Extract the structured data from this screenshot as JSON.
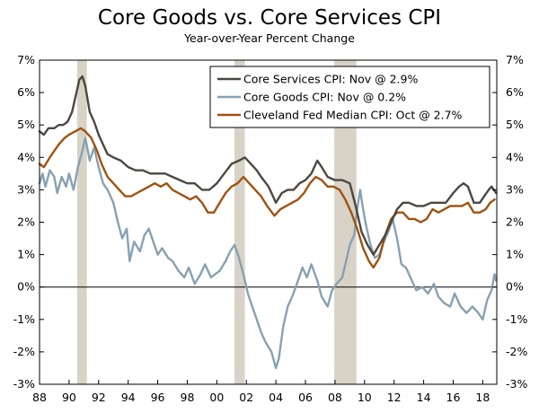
{
  "chart_data": {
    "type": "line",
    "title": "Core Goods vs. Core Services CPI",
    "subtitle": "Year-over-Year Percent Change",
    "xlabel": "",
    "ylabel": "",
    "x_range": [
      1988.0,
      2018.95
    ],
    "ylim": [
      -3,
      7
    ],
    "x_tick_values": [
      1988,
      1990,
      1992,
      1994,
      1996,
      1998,
      2000,
      2002,
      2004,
      2006,
      2008,
      2010,
      2012,
      2014,
      2016,
      2018
    ],
    "x_tick_labels": [
      "88",
      "90",
      "92",
      "94",
      "96",
      "98",
      "00",
      "02",
      "04",
      "06",
      "08",
      "10",
      "12",
      "14",
      "16",
      "18"
    ],
    "y_tick_values": [
      -3,
      -2,
      -1,
      0,
      1,
      2,
      3,
      4,
      5,
      6,
      7
    ],
    "y_tick_labels": [
      "-3%",
      "-2%",
      "-1%",
      "0%",
      "1%",
      "2%",
      "3%",
      "4%",
      "5%",
      "6%",
      "7%"
    ],
    "recessions": [
      [
        1990.55,
        1991.2
      ],
      [
        2001.2,
        2001.9
      ],
      [
        2007.95,
        2009.45
      ]
    ],
    "legend_position": "top-right",
    "series": [
      {
        "name": "Core Services CPI: Nov @ 2.9%",
        "color": "#4d4741",
        "points": [
          [
            1988.0,
            4.8
          ],
          [
            1988.3,
            4.7
          ],
          [
            1988.6,
            4.9
          ],
          [
            1989.0,
            4.9
          ],
          [
            1989.3,
            5.0
          ],
          [
            1989.6,
            5.0
          ],
          [
            1989.9,
            5.1
          ],
          [
            1990.2,
            5.4
          ],
          [
            1990.5,
            6.0
          ],
          [
            1990.7,
            6.4
          ],
          [
            1990.9,
            6.5
          ],
          [
            1991.1,
            6.2
          ],
          [
            1991.4,
            5.4
          ],
          [
            1991.7,
            5.1
          ],
          [
            1992.0,
            4.7
          ],
          [
            1992.3,
            4.4
          ],
          [
            1992.6,
            4.1
          ],
          [
            1993.0,
            4.0
          ],
          [
            1993.5,
            3.9
          ],
          [
            1994.0,
            3.7
          ],
          [
            1994.5,
            3.6
          ],
          [
            1995.0,
            3.6
          ],
          [
            1995.5,
            3.5
          ],
          [
            1996.0,
            3.5
          ],
          [
            1996.5,
            3.5
          ],
          [
            1997.0,
            3.4
          ],
          [
            1997.5,
            3.3
          ],
          [
            1998.0,
            3.2
          ],
          [
            1998.5,
            3.2
          ],
          [
            1999.0,
            3.0
          ],
          [
            1999.5,
            3.0
          ],
          [
            2000.0,
            3.2
          ],
          [
            2000.5,
            3.5
          ],
          [
            2001.0,
            3.8
          ],
          [
            2001.5,
            3.9
          ],
          [
            2001.9,
            4.0
          ],
          [
            2002.3,
            3.8
          ],
          [
            2002.7,
            3.6
          ],
          [
            2003.0,
            3.4
          ],
          [
            2003.5,
            3.1
          ],
          [
            2004.0,
            2.6
          ],
          [
            2004.4,
            2.9
          ],
          [
            2004.8,
            3.0
          ],
          [
            2005.2,
            3.0
          ],
          [
            2005.6,
            3.2
          ],
          [
            2006.0,
            3.3
          ],
          [
            2006.4,
            3.5
          ],
          [
            2006.8,
            3.9
          ],
          [
            2007.1,
            3.7
          ],
          [
            2007.5,
            3.4
          ],
          [
            2008.0,
            3.3
          ],
          [
            2008.5,
            3.3
          ],
          [
            2009.0,
            3.2
          ],
          [
            2009.4,
            2.5
          ],
          [
            2009.8,
            1.7
          ],
          [
            2010.2,
            1.3
          ],
          [
            2010.6,
            1.0
          ],
          [
            2011.0,
            1.3
          ],
          [
            2011.4,
            1.6
          ],
          [
            2011.8,
            2.0
          ],
          [
            2012.2,
            2.4
          ],
          [
            2012.6,
            2.6
          ],
          [
            2013.0,
            2.6
          ],
          [
            2013.5,
            2.5
          ],
          [
            2014.0,
            2.5
          ],
          [
            2014.5,
            2.6
          ],
          [
            2015.0,
            2.6
          ],
          [
            2015.5,
            2.6
          ],
          [
            2016.0,
            2.9
          ],
          [
            2016.4,
            3.1
          ],
          [
            2016.7,
            3.2
          ],
          [
            2017.0,
            3.1
          ],
          [
            2017.4,
            2.6
          ],
          [
            2017.8,
            2.6
          ],
          [
            2018.1,
            2.8
          ],
          [
            2018.4,
            3.0
          ],
          [
            2018.6,
            3.1
          ],
          [
            2018.9,
            2.9
          ]
        ]
      },
      {
        "name": "Core Goods CPI: Nov @ 0.2%",
        "color": "#87a1b2",
        "points": [
          [
            1988.0,
            3.2
          ],
          [
            1988.2,
            3.5
          ],
          [
            1988.4,
            3.1
          ],
          [
            1988.7,
            3.6
          ],
          [
            1989.0,
            3.4
          ],
          [
            1989.2,
            2.9
          ],
          [
            1989.5,
            3.4
          ],
          [
            1989.8,
            3.1
          ],
          [
            1990.0,
            3.5
          ],
          [
            1990.3,
            3.0
          ],
          [
            1990.6,
            3.7
          ],
          [
            1990.9,
            4.2
          ],
          [
            1991.1,
            4.6
          ],
          [
            1991.4,
            3.9
          ],
          [
            1991.7,
            4.3
          ],
          [
            1992.0,
            3.7
          ],
          [
            1992.3,
            3.2
          ],
          [
            1992.6,
            3.0
          ],
          [
            1993.0,
            2.6
          ],
          [
            1993.3,
            2.0
          ],
          [
            1993.6,
            1.5
          ],
          [
            1993.9,
            1.8
          ],
          [
            1994.1,
            0.8
          ],
          [
            1994.4,
            1.4
          ],
          [
            1994.8,
            1.1
          ],
          [
            1995.1,
            1.6
          ],
          [
            1995.4,
            1.8
          ],
          [
            1995.7,
            1.4
          ],
          [
            1996.0,
            1.0
          ],
          [
            1996.3,
            1.2
          ],
          [
            1996.7,
            0.9
          ],
          [
            1997.0,
            0.8
          ],
          [
            1997.4,
            0.5
          ],
          [
            1997.8,
            0.3
          ],
          [
            1998.1,
            0.6
          ],
          [
            1998.5,
            0.1
          ],
          [
            1998.9,
            0.4
          ],
          [
            1999.2,
            0.7
          ],
          [
            1999.6,
            0.3
          ],
          [
            1999.9,
            0.4
          ],
          [
            2000.2,
            0.5
          ],
          [
            2000.6,
            0.8
          ],
          [
            2000.9,
            1.1
          ],
          [
            2001.2,
            1.3
          ],
          [
            2001.5,
            0.9
          ],
          [
            2001.8,
            0.4
          ],
          [
            2002.1,
            -0.2
          ],
          [
            2002.4,
            -0.6
          ],
          [
            2002.7,
            -1.0
          ],
          [
            2003.0,
            -1.4
          ],
          [
            2003.3,
            -1.7
          ],
          [
            2003.7,
            -2.0
          ],
          [
            2004.0,
            -2.5
          ],
          [
            2004.2,
            -2.2
          ],
          [
            2004.5,
            -1.2
          ],
          [
            2004.8,
            -0.6
          ],
          [
            2005.1,
            -0.3
          ],
          [
            2005.5,
            0.2
          ],
          [
            2005.8,
            0.6
          ],
          [
            2006.1,
            0.3
          ],
          [
            2006.4,
            0.7
          ],
          [
            2006.8,
            0.2
          ],
          [
            2007.1,
            -0.3
          ],
          [
            2007.5,
            -0.6
          ],
          [
            2007.8,
            -0.1
          ],
          [
            2008.1,
            0.1
          ],
          [
            2008.5,
            0.3
          ],
          [
            2008.8,
            0.9
          ],
          [
            2009.0,
            1.3
          ],
          [
            2009.3,
            1.6
          ],
          [
            2009.5,
            2.4
          ],
          [
            2009.7,
            3.0
          ],
          [
            2009.9,
            2.4
          ],
          [
            2010.1,
            1.9
          ],
          [
            2010.4,
            1.3
          ],
          [
            2010.7,
            0.9
          ],
          [
            2011.0,
            1.0
          ],
          [
            2011.3,
            1.4
          ],
          [
            2011.6,
            1.7
          ],
          [
            2011.9,
            2.1
          ],
          [
            2012.2,
            1.5
          ],
          [
            2012.5,
            0.7
          ],
          [
            2012.8,
            0.6
          ],
          [
            2013.1,
            0.3
          ],
          [
            2013.5,
            -0.1
          ],
          [
            2013.9,
            0.0
          ],
          [
            2014.3,
            -0.2
          ],
          [
            2014.7,
            0.1
          ],
          [
            2015.0,
            -0.3
          ],
          [
            2015.4,
            -0.5
          ],
          [
            2015.8,
            -0.6
          ],
          [
            2016.1,
            -0.2
          ],
          [
            2016.5,
            -0.6
          ],
          [
            2016.9,
            -0.8
          ],
          [
            2017.3,
            -0.6
          ],
          [
            2017.7,
            -0.8
          ],
          [
            2018.0,
            -1.0
          ],
          [
            2018.3,
            -0.4
          ],
          [
            2018.6,
            -0.1
          ],
          [
            2018.8,
            0.4
          ],
          [
            2018.9,
            0.2
          ]
        ]
      },
      {
        "name": "Cleveland Fed Median CPI: Oct @ 2.7%",
        "color": "#a0520f",
        "points": [
          [
            1988.0,
            3.8
          ],
          [
            1988.3,
            3.7
          ],
          [
            1988.7,
            4.0
          ],
          [
            1989.0,
            4.2
          ],
          [
            1989.3,
            4.4
          ],
          [
            1989.7,
            4.6
          ],
          [
            1990.0,
            4.7
          ],
          [
            1990.4,
            4.8
          ],
          [
            1990.8,
            4.9
          ],
          [
            1991.1,
            4.8
          ],
          [
            1991.5,
            4.6
          ],
          [
            1991.9,
            4.2
          ],
          [
            1992.2,
            3.8
          ],
          [
            1992.6,
            3.4
          ],
          [
            1993.0,
            3.2
          ],
          [
            1993.4,
            3.0
          ],
          [
            1993.8,
            2.8
          ],
          [
            1994.2,
            2.8
          ],
          [
            1994.6,
            2.9
          ],
          [
            1995.0,
            3.0
          ],
          [
            1995.4,
            3.1
          ],
          [
            1995.8,
            3.2
          ],
          [
            1996.2,
            3.1
          ],
          [
            1996.6,
            3.2
          ],
          [
            1997.0,
            3.0
          ],
          [
            1997.4,
            2.9
          ],
          [
            1997.8,
            2.8
          ],
          [
            1998.2,
            2.7
          ],
          [
            1998.6,
            2.8
          ],
          [
            1999.0,
            2.6
          ],
          [
            1999.4,
            2.3
          ],
          [
            1999.8,
            2.3
          ],
          [
            2000.2,
            2.6
          ],
          [
            2000.6,
            2.9
          ],
          [
            2001.0,
            3.1
          ],
          [
            2001.4,
            3.2
          ],
          [
            2001.8,
            3.4
          ],
          [
            2002.2,
            3.2
          ],
          [
            2002.6,
            3.0
          ],
          [
            2003.0,
            2.8
          ],
          [
            2003.4,
            2.5
          ],
          [
            2003.9,
            2.2
          ],
          [
            2004.3,
            2.4
          ],
          [
            2004.7,
            2.5
          ],
          [
            2005.1,
            2.6
          ],
          [
            2005.5,
            2.7
          ],
          [
            2005.9,
            2.9
          ],
          [
            2006.3,
            3.2
          ],
          [
            2006.7,
            3.4
          ],
          [
            2007.1,
            3.3
          ],
          [
            2007.5,
            3.1
          ],
          [
            2007.9,
            3.1
          ],
          [
            2008.3,
            3.0
          ],
          [
            2008.7,
            2.7
          ],
          [
            2009.1,
            2.3
          ],
          [
            2009.5,
            1.8
          ],
          [
            2009.9,
            1.2
          ],
          [
            2010.3,
            0.8
          ],
          [
            2010.6,
            0.6
          ],
          [
            2011.0,
            0.9
          ],
          [
            2011.4,
            1.6
          ],
          [
            2011.8,
            2.1
          ],
          [
            2012.2,
            2.3
          ],
          [
            2012.6,
            2.3
          ],
          [
            2013.0,
            2.1
          ],
          [
            2013.4,
            2.1
          ],
          [
            2013.8,
            2.0
          ],
          [
            2014.2,
            2.1
          ],
          [
            2014.6,
            2.4
          ],
          [
            2015.0,
            2.3
          ],
          [
            2015.4,
            2.4
          ],
          [
            2015.8,
            2.5
          ],
          [
            2016.2,
            2.5
          ],
          [
            2016.6,
            2.5
          ],
          [
            2017.0,
            2.6
          ],
          [
            2017.4,
            2.3
          ],
          [
            2017.8,
            2.3
          ],
          [
            2018.2,
            2.4
          ],
          [
            2018.5,
            2.6
          ],
          [
            2018.8,
            2.7
          ]
        ]
      }
    ]
  }
}
